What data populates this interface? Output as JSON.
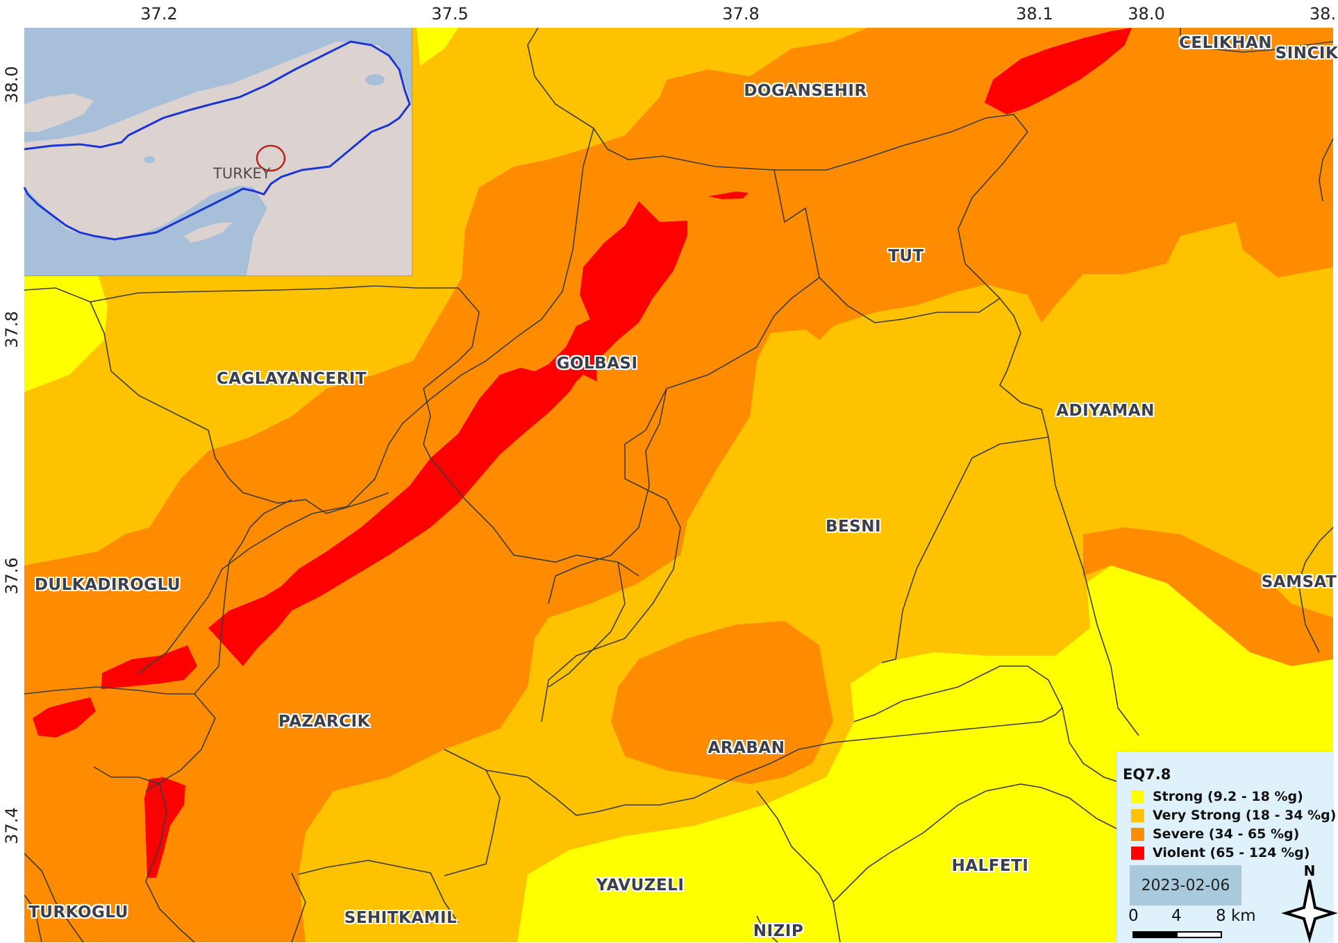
{
  "axes": {
    "x_ticks": [
      "37.2",
      "37.5",
      "37.8",
      "38.1",
      "38.0",
      "38."
    ],
    "y_ticks": [
      "38.0",
      "37.8",
      "37.6",
      "37.4"
    ]
  },
  "inset": {
    "country_label": "TURKEY"
  },
  "places": [
    {
      "name": "CELIKHAN"
    },
    {
      "name": "SINCIK"
    },
    {
      "name": "DOGANSEHIR"
    },
    {
      "name": "TUT"
    },
    {
      "name": "GOLBASI"
    },
    {
      "name": "CAGLAYANCERIT"
    },
    {
      "name": "ADIYAMAN"
    },
    {
      "name": "BESNI"
    },
    {
      "name": "DULKADIROGLU"
    },
    {
      "name": "SAMSAT"
    },
    {
      "name": "PAZARCIK"
    },
    {
      "name": "ARABAN"
    },
    {
      "name": "HALFETI"
    },
    {
      "name": "YAVUZELI"
    },
    {
      "name": "TURKOGLU"
    },
    {
      "name": "SEHITKAMIL"
    },
    {
      "name": "NIZIP"
    }
  ],
  "legend": {
    "title": "EQ7.8",
    "items": [
      {
        "label": "Strong (9.2 - 18 %g)",
        "color": "#ffff00"
      },
      {
        "label": "Very Strong (18 - 34 %g)",
        "color": "#ffc200"
      },
      {
        "label": "Severe (34 - 65 %g)",
        "color": "#ff8c00"
      },
      {
        "label": "Violent (65 - 124 %g)",
        "color": "#ff0000"
      }
    ],
    "date": "2023-02-06",
    "scale": {
      "s0": "0",
      "s1": "4",
      "s2": "8 km"
    },
    "north_label": "N"
  },
  "colors": {
    "strong": "#ffff00",
    "very_strong": "#ffc200",
    "severe": "#ff8c00",
    "violent": "#ff0000",
    "boundary": "#3b3b3b",
    "inset_sea": "#a7bfd8",
    "inset_land": "#dcd3d1",
    "inset_border": "#1a35d6",
    "inset_marker": "#c0211a"
  }
}
